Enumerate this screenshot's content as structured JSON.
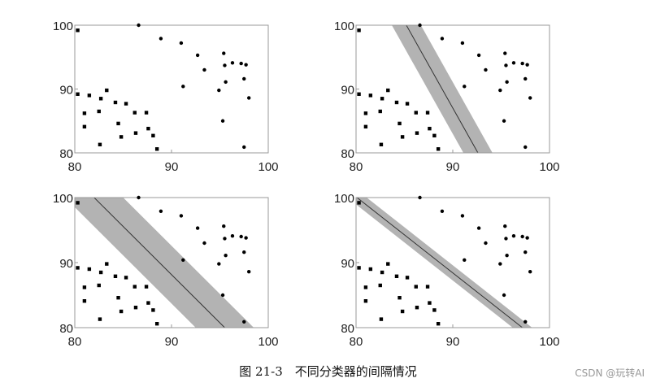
{
  "caption": "图 21-3　不同分类器的间隔情况",
  "watermark": "CSDN @玩转AI",
  "chart_data": [
    {
      "type": "scatter",
      "xlim": [
        80,
        100
      ],
      "ylim": [
        80,
        100
      ],
      "xticks": [
        "80",
        "90",
        "100"
      ],
      "yticks": [
        "80",
        "90",
        "100"
      ],
      "series": [
        {
          "marker": "square",
          "points": [
            [
              80.3,
              99.2
            ],
            [
              80.3,
              89.2
            ],
            [
              81.0,
              86.2
            ],
            [
              81.0,
              84.1
            ],
            [
              81.5,
              89.0
            ],
            [
              82.5,
              86.5
            ],
            [
              82.6,
              81.3
            ],
            [
              82.7,
              88.5
            ],
            [
              83.3,
              89.8
            ],
            [
              84.2,
              87.9
            ],
            [
              84.5,
              84.6
            ],
            [
              84.8,
              82.5
            ],
            [
              85.3,
              87.7
            ],
            [
              86.2,
              86.3
            ],
            [
              86.3,
              83.1
            ],
            [
              87.4,
              86.3
            ],
            [
              87.6,
              83.8
            ],
            [
              88.1,
              82.7
            ],
            [
              88.5,
              80.6
            ]
          ]
        },
        {
          "marker": "dot",
          "points": [
            [
              86.6,
              100.0
            ],
            [
              88.9,
              97.9
            ],
            [
              91.0,
              97.2
            ],
            [
              91.2,
              90.4
            ],
            [
              92.7,
              95.3
            ],
            [
              93.4,
              93.0
            ],
            [
              94.9,
              89.8
            ],
            [
              95.3,
              85.0
            ],
            [
              95.4,
              95.6
            ],
            [
              95.5,
              93.7
            ],
            [
              95.6,
              91.1
            ],
            [
              96.3,
              94.1
            ],
            [
              97.2,
              94.0
            ],
            [
              97.5,
              91.6
            ],
            [
              97.5,
              80.9
            ],
            [
              97.7,
              93.8
            ],
            [
              98.0,
              88.6
            ]
          ]
        }
      ]
    },
    {
      "type": "scatter",
      "xlim": [
        80,
        100
      ],
      "ylim": [
        80,
        100
      ],
      "xticks": [
        "80",
        "90",
        "100"
      ],
      "yticks": [
        "80",
        "90",
        "100"
      ],
      "band": {
        "center": [
          [
            85.2,
            100
          ],
          [
            92.6,
            80
          ]
        ],
        "half_width_x": 1.5
      }
    },
    {
      "type": "scatter",
      "xlim": [
        80,
        100
      ],
      "ylim": [
        80,
        100
      ],
      "xticks": [
        "80",
        "90",
        "100"
      ],
      "yticks": [
        "80",
        "90",
        "100"
      ],
      "band": {
        "center": [
          [
            82.0,
            100
          ],
          [
            95.5,
            80
          ]
        ],
        "half_width_x": 3.0
      }
    },
    {
      "type": "scatter",
      "xlim": [
        80,
        100
      ],
      "ylim": [
        80,
        100
      ],
      "xticks": [
        "80",
        "90",
        "100"
      ],
      "yticks": [
        "80",
        "90",
        "100"
      ],
      "band": {
        "center": [
          [
            80.1,
            100
          ],
          [
            97.2,
            80
          ]
        ],
        "half_width_x": 1.0
      }
    }
  ]
}
